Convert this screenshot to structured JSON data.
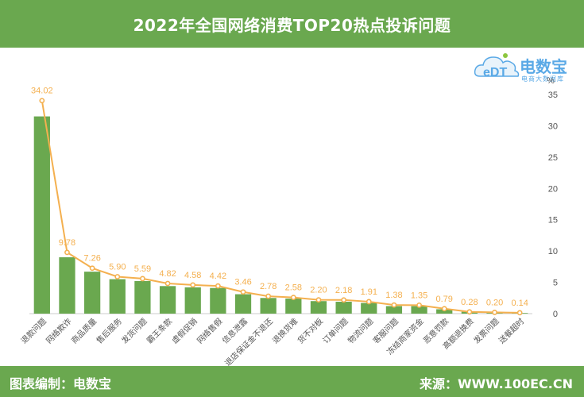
{
  "header": {
    "title": "2022年全国网络消费TOP20热点投诉问题"
  },
  "footer": {
    "left": "图表编制：电数宝",
    "right": "来源：WWW.100EC.CN"
  },
  "logo": {
    "brand": "电数宝",
    "sub": "电商大数据库",
    "icon": "cloud-edt-logo-icon",
    "letters": "eDT"
  },
  "colors": {
    "bar": "#6aa84f",
    "line": "#f4b04f",
    "header": "#6aa84f",
    "text": "#333333"
  },
  "chart_data": {
    "type": "bar",
    "title": "2022年全国网络消费TOP20热点投诉问题",
    "xlabel": "",
    "ylabel": "%",
    "ylim": [
      0,
      35
    ],
    "yticks": [
      0,
      5,
      10,
      15,
      20,
      25,
      30,
      35
    ],
    "y_axis_position": "right",
    "grid": false,
    "categories": [
      "退款问题",
      "网络欺诈",
      "商品质量",
      "售后服务",
      "发货问题",
      "霸王条款",
      "虚假促销",
      "网络售假",
      "信息泄露",
      "退店保证金不退还",
      "退换货难",
      "货不对板",
      "订单问题",
      "物流问题",
      "客服问题",
      "冻结商家资金",
      "恶意罚款",
      "高额退换费",
      "发票问题",
      "送餐超时"
    ],
    "series": [
      {
        "type": "bar",
        "values": [
          31.5,
          9.0,
          6.7,
          5.5,
          5.2,
          4.4,
          4.2,
          4.1,
          3.1,
          2.5,
          2.4,
          2.0,
          1.9,
          1.7,
          1.2,
          1.2,
          0.7,
          0.3,
          0.2,
          0.1
        ]
      },
      {
        "type": "line",
        "values": [
          34.02,
          9.78,
          7.26,
          5.9,
          5.59,
          4.82,
          4.58,
          4.42,
          3.46,
          2.78,
          2.58,
          2.2,
          2.18,
          1.91,
          1.38,
          1.35,
          0.79,
          0.28,
          0.2,
          0.14
        ],
        "labels": [
          "34.02",
          "9.78",
          "7.26",
          "5.90",
          "5.59",
          "4.82",
          "4.58",
          "4.42",
          "3.46",
          "2.78",
          "2.58",
          "2.20",
          "2.18",
          "1.91",
          "1.38",
          "1.35",
          "0.79",
          "0.28",
          "0.20",
          "0.14"
        ]
      }
    ]
  }
}
